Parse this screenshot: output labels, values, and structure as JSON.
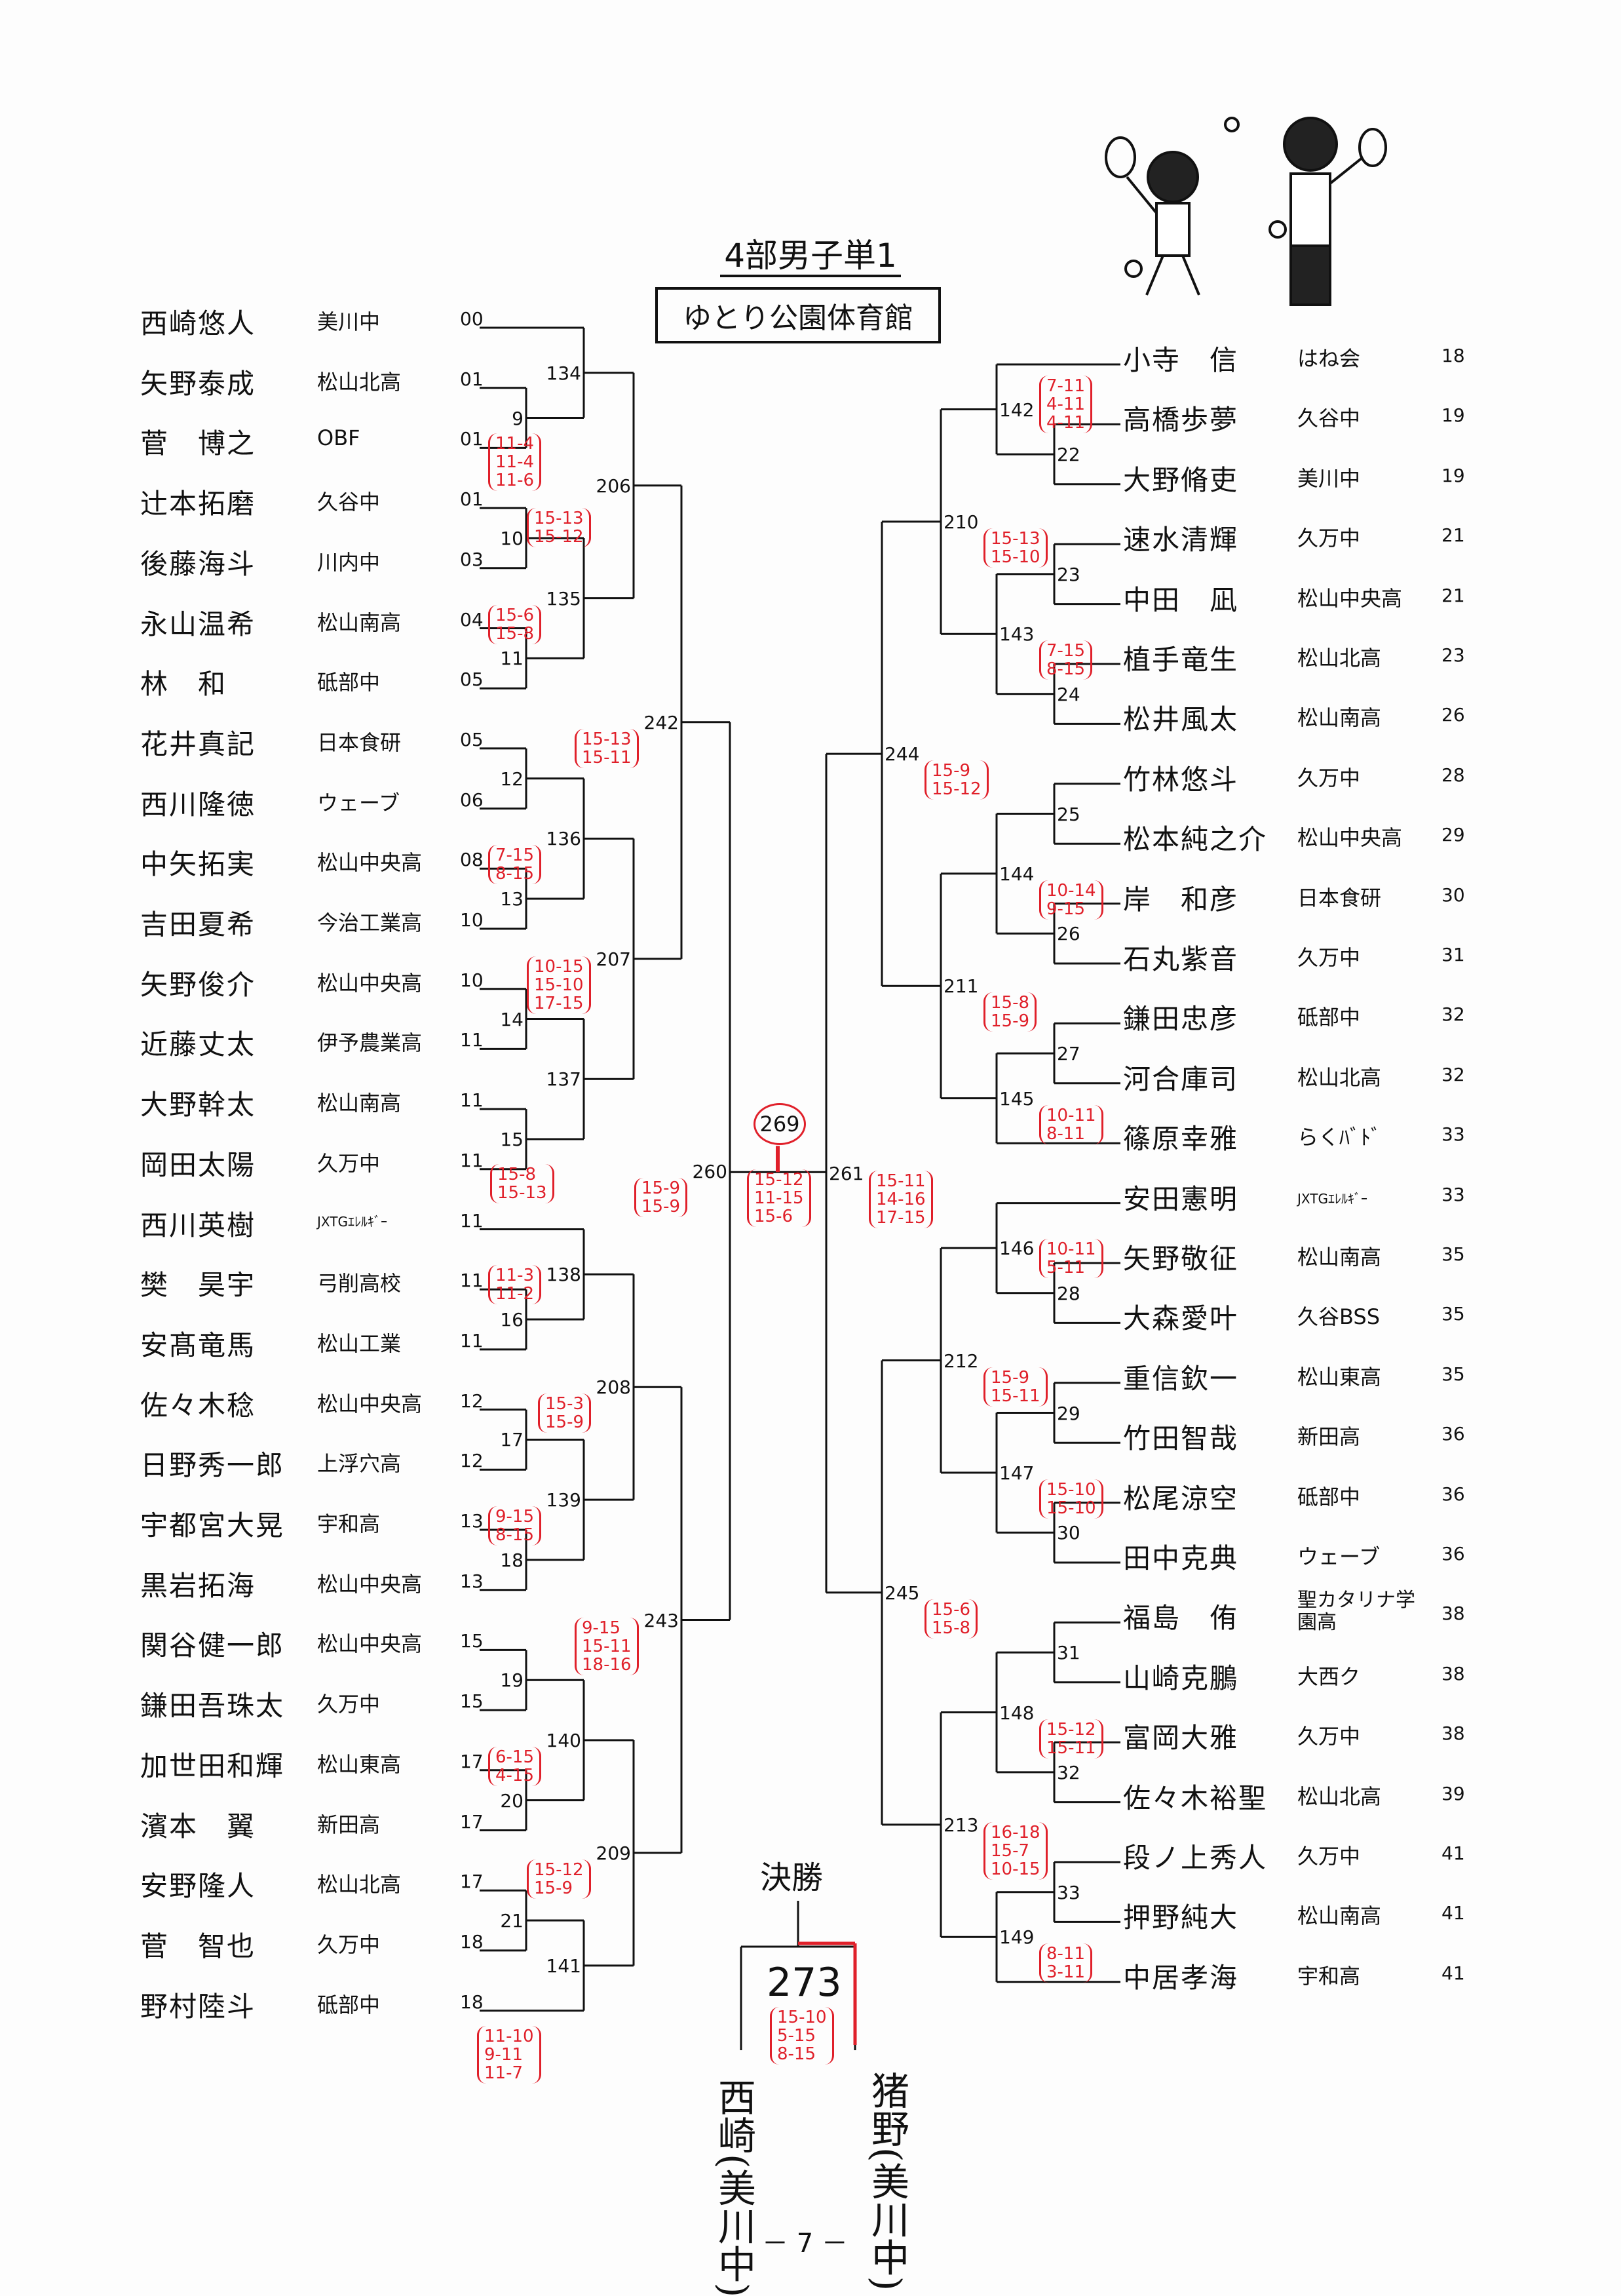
{
  "title": "4部男子単1",
  "venue": "ゆとり公園体育館",
  "final_label": "決勝",
  "page_number": "－ 7 －",
  "accent_color": "#e0202a",
  "left": {
    "players": [
      {
        "name": "西崎悠人",
        "team": "美川中",
        "num": "00"
      },
      {
        "name": "矢野泰成",
        "team": "松山北高",
        "num": "01"
      },
      {
        "name": "菅　博之",
        "team": "OBF",
        "num": "01"
      },
      {
        "name": "辻本拓磨",
        "team": "久谷中",
        "num": "01"
      },
      {
        "name": "後藤海斗",
        "team": "川内中",
        "num": "03"
      },
      {
        "name": "永山温希",
        "team": "松山南高",
        "num": "04"
      },
      {
        "name": "林　和",
        "team": "砥部中",
        "num": "05"
      },
      {
        "name": "花井真記",
        "team": "日本食研",
        "num": "05"
      },
      {
        "name": "西川隆徳",
        "team": "ウェーブ",
        "num": "06"
      },
      {
        "name": "中矢拓実",
        "team": "松山中央高",
        "num": "08"
      },
      {
        "name": "吉田夏希",
        "team": "今治工業高",
        "num": "10"
      },
      {
        "name": "矢野俊介",
        "team": "松山中央高",
        "num": "10"
      },
      {
        "name": "近藤丈太",
        "team": "伊予農業高",
        "num": "11"
      },
      {
        "name": "大野幹太",
        "team": "松山南高",
        "num": "11"
      },
      {
        "name": "岡田太陽",
        "team": "久万中",
        "num": "11"
      },
      {
        "name": "西川英樹",
        "team": "JXTGｴﾚﾙｷﾞｰ",
        "num": "11"
      },
      {
        "name": "樊　昊宇",
        "team": "弓削高校",
        "num": "11"
      },
      {
        "name": "安髙竜馬",
        "team": "松山工業",
        "num": "11"
      },
      {
        "name": "佐々木稔",
        "team": "松山中央高",
        "num": "12"
      },
      {
        "name": "日野秀一郎",
        "team": "上浮穴高",
        "num": "12"
      },
      {
        "name": "宇都宮大晃",
        "team": "宇和高",
        "num": "13"
      },
      {
        "name": "黒岩拓海",
        "team": "松山中央高",
        "num": "13"
      },
      {
        "name": "関谷健一郎",
        "team": "松山中央高",
        "num": "15"
      },
      {
        "name": "鎌田吾珠太",
        "team": "久万中",
        "num": "15"
      },
      {
        "name": "加世田和輝",
        "team": "松山東高",
        "num": "17"
      },
      {
        "name": "濱本　翼",
        "team": "新田高",
        "num": "17"
      },
      {
        "name": "安野隆人",
        "team": "松山北高",
        "num": "17"
      },
      {
        "name": "菅　智也",
        "team": "久万中",
        "num": "18"
      },
      {
        "name": "野村陸斗",
        "team": "砥部中",
        "num": "18"
      }
    ],
    "matches": [
      {
        "id": "9",
        "a": "p1",
        "b": "p2"
      },
      {
        "id": "134",
        "a": "p0",
        "b": "m9",
        "scores": [
          "11-4",
          "11-4",
          "11-6"
        ]
      },
      {
        "id": "10",
        "a": "p3",
        "b": "p4"
      },
      {
        "id": "11",
        "a": "p5",
        "b": "p6"
      },
      {
        "id": "135",
        "a": "m10",
        "b": "m11",
        "scores": [
          "15-6",
          "15-8"
        ]
      },
      {
        "id": "206",
        "a": "m134",
        "b": "m135",
        "scores": [
          "15-13",
          "15-12"
        ]
      },
      {
        "id": "12",
        "a": "p7",
        "b": "p8"
      },
      {
        "id": "13",
        "a": "p9",
        "b": "p10"
      },
      {
        "id": "136",
        "a": "m12",
        "b": "m13",
        "scores": [
          "7-15",
          "8-15"
        ]
      },
      {
        "id": "14",
        "a": "p11",
        "b": "p12"
      },
      {
        "id": "15",
        "a": "p13",
        "b": "p14"
      },
      {
        "id": "137",
        "a": "m14",
        "b": "m15",
        "scores": [
          "15-8",
          "15-13"
        ]
      },
      {
        "id": "207",
        "a": "m136",
        "b": "m137",
        "scores": [
          "10-15",
          "15-10",
          "17-15"
        ]
      },
      {
        "id": "242",
        "a": "m206",
        "b": "m207",
        "scores": [
          "15-13",
          "15-11"
        ]
      },
      {
        "id": "16",
        "a": "p16",
        "b": "p17"
      },
      {
        "id": "138",
        "a": "p15",
        "b": "m16",
        "scores": [
          "11-3",
          "11-2"
        ]
      },
      {
        "id": "17",
        "a": "p18",
        "b": "p19"
      },
      {
        "id": "18",
        "a": "p20",
        "b": "p21"
      },
      {
        "id": "139",
        "a": "m17",
        "b": "m18",
        "scores": [
          "9-15",
          "8-15"
        ]
      },
      {
        "id": "208",
        "a": "m138",
        "b": "m139",
        "scores": [
          "15-3",
          "15-9"
        ]
      },
      {
        "id": "19",
        "a": "p22",
        "b": "p23"
      },
      {
        "id": "20",
        "a": "p24",
        "b": "p25"
      },
      {
        "id": "140",
        "a": "m19",
        "b": "m20",
        "scores": [
          "6-15",
          "4-15"
        ]
      },
      {
        "id": "21",
        "a": "p26",
        "b": "p27"
      },
      {
        "id": "141",
        "a": "m21",
        "b": "p28",
        "scores": [
          "11-10",
          "9-11",
          "11-7"
        ]
      },
      {
        "id": "209",
        "a": "m140",
        "b": "m141",
        "scores": [
          "15-12",
          "15-9"
        ]
      },
      {
        "id": "243",
        "a": "m208",
        "b": "m209",
        "scores": [
          "9-15",
          "15-11",
          "18-16"
        ]
      },
      {
        "id": "260",
        "a": "m242",
        "b": "m243",
        "scores": [
          "15-9",
          "15-9"
        ]
      }
    ]
  },
  "right": {
    "players": [
      {
        "name": "小寺　信",
        "team": "はね会",
        "num": "18"
      },
      {
        "name": "高橋歩夢",
        "team": "久谷中",
        "num": "19"
      },
      {
        "name": "大野脩吏",
        "team": "美川中",
        "num": "19"
      },
      {
        "name": "速水清輝",
        "team": "久万中",
        "num": "21"
      },
      {
        "name": "中田　凪",
        "team": "松山中央高",
        "num": "21"
      },
      {
        "name": "植手竜生",
        "team": "松山北高",
        "num": "23"
      },
      {
        "name": "松井風太",
        "team": "松山南高",
        "num": "26"
      },
      {
        "name": "竹林悠斗",
        "team": "久万中",
        "num": "28"
      },
      {
        "name": "松本純之介",
        "team": "松山中央高",
        "num": "29"
      },
      {
        "name": "岸　和彦",
        "team": "日本食研",
        "num": "30"
      },
      {
        "name": "石丸紫音",
        "team": "久万中",
        "num": "31"
      },
      {
        "name": "鎌田忠彦",
        "team": "砥部中",
        "num": "32"
      },
      {
        "name": "河合庫司",
        "team": "松山北高",
        "num": "32"
      },
      {
        "name": "篠原幸雅",
        "team": "らくﾊﾞﾄﾞ",
        "num": "33"
      },
      {
        "name": "安田憲明",
        "team": "JXTGｴﾚﾙｷﾞｰ",
        "num": "33"
      },
      {
        "name": "矢野敬征",
        "team": "松山南高",
        "num": "35"
      },
      {
        "name": "大森愛叶",
        "team": "久谷BSS",
        "num": "35"
      },
      {
        "name": "重信欽一",
        "team": "松山東高",
        "num": "35"
      },
      {
        "name": "竹田智哉",
        "team": "新田高",
        "num": "36"
      },
      {
        "name": "松尾涼空",
        "team": "砥部中",
        "num": "36"
      },
      {
        "name": "田中克典",
        "team": "ウェーブ",
        "num": "36"
      },
      {
        "name": "福島　侑",
        "team": "聖カタリナ学園高",
        "num": "38"
      },
      {
        "name": "山崎克鵬",
        "team": "大西ク",
        "num": "38"
      },
      {
        "name": "富岡大雅",
        "team": "久万中",
        "num": "38"
      },
      {
        "name": "佐々木裕聖",
        "team": "松山北高",
        "num": "39"
      },
      {
        "name": "段ノ上秀人",
        "team": "久万中",
        "num": "41"
      },
      {
        "name": "押野純大",
        "team": "松山南高",
        "num": "41"
      },
      {
        "name": "中居孝海",
        "team": "宇和高",
        "num": "41"
      }
    ],
    "matches": [
      {
        "id": "22",
        "a": "p1",
        "b": "p2"
      },
      {
        "id": "142",
        "a": "p0",
        "b": "m22",
        "scores": [
          "7-11",
          "4-11",
          "4-11"
        ]
      },
      {
        "id": "23",
        "a": "p3",
        "b": "p4"
      },
      {
        "id": "24",
        "a": "p5",
        "b": "p6"
      },
      {
        "id": "143",
        "a": "m23",
        "b": "m24",
        "scores": [
          "7-15",
          "8-15"
        ]
      },
      {
        "id": "210",
        "a": "m142",
        "b": "m143",
        "scores": [
          "15-13",
          "15-10"
        ]
      },
      {
        "id": "25",
        "a": "p7",
        "b": "p8"
      },
      {
        "id": "26",
        "a": "p9",
        "b": "p10"
      },
      {
        "id": "144",
        "a": "m25",
        "b": "m26",
        "scores": [
          "10-14",
          "9-15"
        ]
      },
      {
        "id": "27",
        "a": "p11",
        "b": "p12"
      },
      {
        "id": "145",
        "a": "m27",
        "b": "p13",
        "scores": [
          "10-11",
          "8-11"
        ]
      },
      {
        "id": "211",
        "a": "m144",
        "b": "m145",
        "scores": [
          "15-8",
          "15-9"
        ]
      },
      {
        "id": "244",
        "a": "m210",
        "b": "m211",
        "scores": [
          "15-9",
          "15-12"
        ]
      },
      {
        "id": "28",
        "a": "p15",
        "b": "p16"
      },
      {
        "id": "146",
        "a": "p14",
        "b": "m28",
        "scores": [
          "10-11",
          "5-11"
        ]
      },
      {
        "id": "29",
        "a": "p17",
        "b": "p18"
      },
      {
        "id": "30",
        "a": "p19",
        "b": "p20"
      },
      {
        "id": "147",
        "a": "m29",
        "b": "m30",
        "scores": [
          "15-10",
          "15-10"
        ]
      },
      {
        "id": "212",
        "a": "m146",
        "b": "m147",
        "scores": [
          "15-9",
          "15-11"
        ]
      },
      {
        "id": "31",
        "a": "p21",
        "b": "p22"
      },
      {
        "id": "32",
        "a": "p23",
        "b": "p24"
      },
      {
        "id": "148",
        "a": "m31",
        "b": "m32",
        "scores": [
          "15-12",
          "15-11"
        ]
      },
      {
        "id": "33",
        "a": "p25",
        "b": "p26"
      },
      {
        "id": "149",
        "a": "m33",
        "b": "p27",
        "scores": [
          "8-11",
          "3-11"
        ]
      },
      {
        "id": "213",
        "a": "m148",
        "b": "m149",
        "scores": [
          "16-18",
          "15-7",
          "10-15"
        ]
      },
      {
        "id": "245",
        "a": "m212",
        "b": "m213",
        "scores": [
          "15-6",
          "15-8"
        ]
      },
      {
        "id": "261",
        "a": "m244",
        "b": "m245",
        "scores": [
          "15-11",
          "14-16",
          "17-15"
        ]
      }
    ]
  },
  "semifinal": {
    "id": "269",
    "scores": [
      "15-12",
      "11-15",
      "15-6"
    ]
  },
  "final": {
    "id": "273",
    "scores": [
      "15-10",
      "5-15",
      "8-15"
    ]
  },
  "handwritten_finalists": [
    "西崎(美川中)",
    "猪野(美川中)"
  ]
}
